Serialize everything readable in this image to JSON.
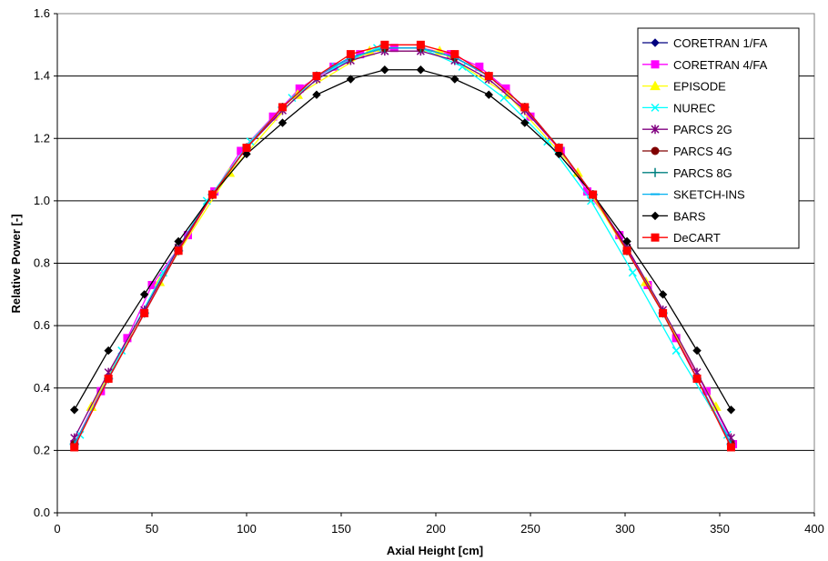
{
  "chart_data": {
    "type": "line",
    "title": "",
    "xlabel": "Axial Height [cm]",
    "ylabel": "Relative Power [-]",
    "xlim": [
      0,
      400
    ],
    "ylim": [
      0.0,
      1.6
    ],
    "xticks": [
      "0",
      "50",
      "100",
      "150",
      "200",
      "250",
      "300",
      "350",
      "400"
    ],
    "yticks": [
      "0.0",
      "0.2",
      "0.4",
      "0.6",
      "0.8",
      "1.0",
      "1.2",
      "1.4",
      "1.6"
    ],
    "grid": "horizontal",
    "legend_position": "top-right",
    "series": [
      {
        "name": "CORETRAN 1/FA",
        "color": "#000080",
        "marker": "diamond",
        "x": [
          9,
          27,
          46,
          64,
          82,
          100,
          119,
          137,
          155,
          173,
          192,
          210,
          228,
          247,
          265,
          283,
          301,
          320,
          338,
          356
        ],
        "y": [
          0.22,
          0.43,
          0.64,
          0.84,
          1.02,
          1.17,
          1.3,
          1.4,
          1.46,
          1.49,
          1.49,
          1.46,
          1.4,
          1.3,
          1.17,
          1.02,
          0.84,
          0.64,
          0.43,
          0.22
        ]
      },
      {
        "name": "CORETRAN 4/FA",
        "color": "#ff00ff",
        "marker": "square",
        "x": [
          9,
          23,
          37,
          50,
          69,
          83,
          97,
          114,
          128,
          146,
          160,
          178,
          192,
          208,
          223,
          237,
          250,
          266,
          280,
          297,
          312,
          327,
          343,
          357
        ],
        "y": [
          0.22,
          0.39,
          0.56,
          0.73,
          0.89,
          1.03,
          1.16,
          1.27,
          1.36,
          1.43,
          1.47,
          1.49,
          1.49,
          1.47,
          1.43,
          1.36,
          1.27,
          1.16,
          1.03,
          0.89,
          0.73,
          0.56,
          0.39,
          0.22
        ]
      },
      {
        "name": "EPISODE",
        "color": "#ffff00",
        "marker": "triangle",
        "x": [
          18,
          54,
          91,
          127,
          165,
          202,
          238,
          275,
          311,
          348
        ],
        "y": [
          0.34,
          0.74,
          1.09,
          1.34,
          1.48,
          1.48,
          1.34,
          1.09,
          0.74,
          0.34
        ]
      },
      {
        "name": "NUREC",
        "color": "#00ffff",
        "marker": "x",
        "x": [
          12,
          34,
          56,
          79,
          102,
          124,
          147,
          169,
          192,
          214,
          236,
          259,
          282,
          304,
          327,
          354
        ],
        "y": [
          0.25,
          0.52,
          0.77,
          1.0,
          1.19,
          1.33,
          1.43,
          1.49,
          1.49,
          1.43,
          1.33,
          1.19,
          1.0,
          0.77,
          0.52,
          0.25
        ]
      },
      {
        "name": "PARCS 2G",
        "color": "#800080",
        "marker": "star",
        "x": [
          9,
          27,
          46,
          64,
          82,
          100,
          119,
          137,
          155,
          173,
          192,
          210,
          228,
          247,
          265,
          283,
          301,
          320,
          338,
          356
        ],
        "y": [
          0.24,
          0.45,
          0.65,
          0.85,
          1.02,
          1.17,
          1.29,
          1.39,
          1.45,
          1.48,
          1.48,
          1.45,
          1.39,
          1.29,
          1.17,
          1.02,
          0.85,
          0.65,
          0.45,
          0.24
        ]
      },
      {
        "name": "PARCS 4G",
        "color": "#800000",
        "marker": "circle",
        "x": [
          9,
          27,
          46,
          64,
          82,
          100,
          119,
          137,
          155,
          173,
          192,
          210,
          228,
          247,
          265,
          283,
          301,
          320,
          338,
          356
        ],
        "y": [
          0.22,
          0.43,
          0.64,
          0.84,
          1.02,
          1.17,
          1.3,
          1.4,
          1.46,
          1.49,
          1.49,
          1.46,
          1.4,
          1.3,
          1.17,
          1.02,
          0.84,
          0.64,
          0.43,
          0.22
        ]
      },
      {
        "name": "PARCS 8G",
        "color": "#008080",
        "marker": "plus",
        "x": [
          9,
          27,
          46,
          64,
          82,
          100,
          119,
          137,
          155,
          173,
          192,
          210,
          228,
          247,
          265,
          283,
          301,
          320,
          338,
          356
        ],
        "y": [
          0.22,
          0.43,
          0.64,
          0.84,
          1.02,
          1.17,
          1.3,
          1.4,
          1.46,
          1.49,
          1.49,
          1.46,
          1.4,
          1.3,
          1.17,
          1.02,
          0.84,
          0.64,
          0.43,
          0.22
        ]
      },
      {
        "name": "SKETCH-INS",
        "color": "#00b0f0",
        "marker": "dash",
        "x": [
          9,
          27,
          46,
          64,
          82,
          100,
          119,
          137,
          155,
          173,
          192,
          210,
          228,
          247,
          265,
          283,
          301,
          320,
          338,
          356
        ],
        "y": [
          0.22,
          0.43,
          0.64,
          0.84,
          1.02,
          1.17,
          1.3,
          1.4,
          1.46,
          1.49,
          1.49,
          1.46,
          1.4,
          1.3,
          1.17,
          1.02,
          0.84,
          0.64,
          0.43,
          0.22
        ]
      },
      {
        "name": "BARS",
        "color": "#000000",
        "marker": "diamond",
        "x": [
          9,
          27,
          46,
          64,
          82,
          100,
          119,
          137,
          155,
          173,
          192,
          210,
          228,
          247,
          265,
          283,
          301,
          320,
          338,
          356
        ],
        "y": [
          0.33,
          0.52,
          0.7,
          0.87,
          1.02,
          1.15,
          1.25,
          1.34,
          1.39,
          1.42,
          1.42,
          1.39,
          1.34,
          1.25,
          1.15,
          1.02,
          0.87,
          0.7,
          0.52,
          0.33
        ]
      },
      {
        "name": "DeCART",
        "color": "#ff0000",
        "marker": "square",
        "x": [
          9,
          27,
          46,
          64,
          82,
          100,
          119,
          137,
          155,
          173,
          192,
          210,
          228,
          247,
          265,
          283,
          301,
          320,
          338,
          356
        ],
        "y": [
          0.21,
          0.43,
          0.64,
          0.84,
          1.02,
          1.17,
          1.3,
          1.4,
          1.47,
          1.5,
          1.5,
          1.47,
          1.4,
          1.3,
          1.17,
          1.02,
          0.84,
          0.64,
          0.43,
          0.21
        ]
      }
    ]
  }
}
